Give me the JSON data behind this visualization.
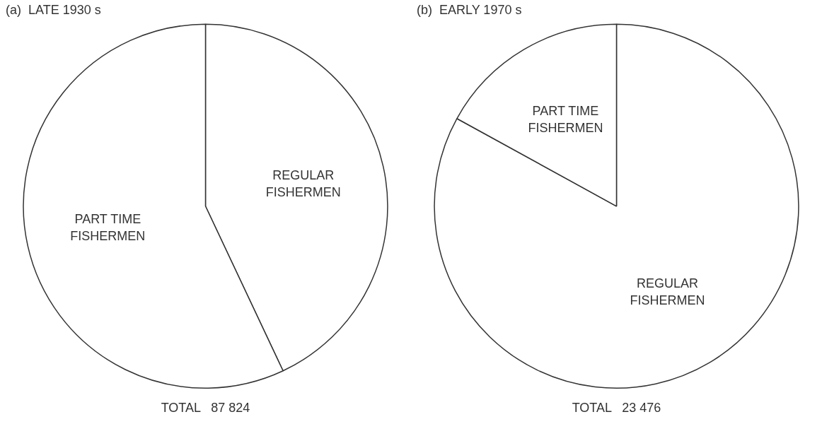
{
  "chart_data": [
    {
      "type": "pie",
      "title": "(a)  LATE 1930 s",
      "categories": [
        "REGULAR FISHERMEN",
        "PART TIME FISHERMEN"
      ],
      "values": [
        43,
        57
      ],
      "colors": [
        "#ffffff",
        "#ffffff"
      ],
      "annotations": [
        "TOTAL   87 824"
      ]
    },
    {
      "type": "pie",
      "title": "(b)  EARLY 1970 s",
      "categories": [
        "REGULAR FISHERMEN",
        "PART TIME FISHERMEN"
      ],
      "values": [
        83,
        17
      ],
      "colors": [
        "#ffffff",
        "#ffffff"
      ],
      "annotations": [
        "TOTAL   23 476"
      ]
    }
  ]
}
